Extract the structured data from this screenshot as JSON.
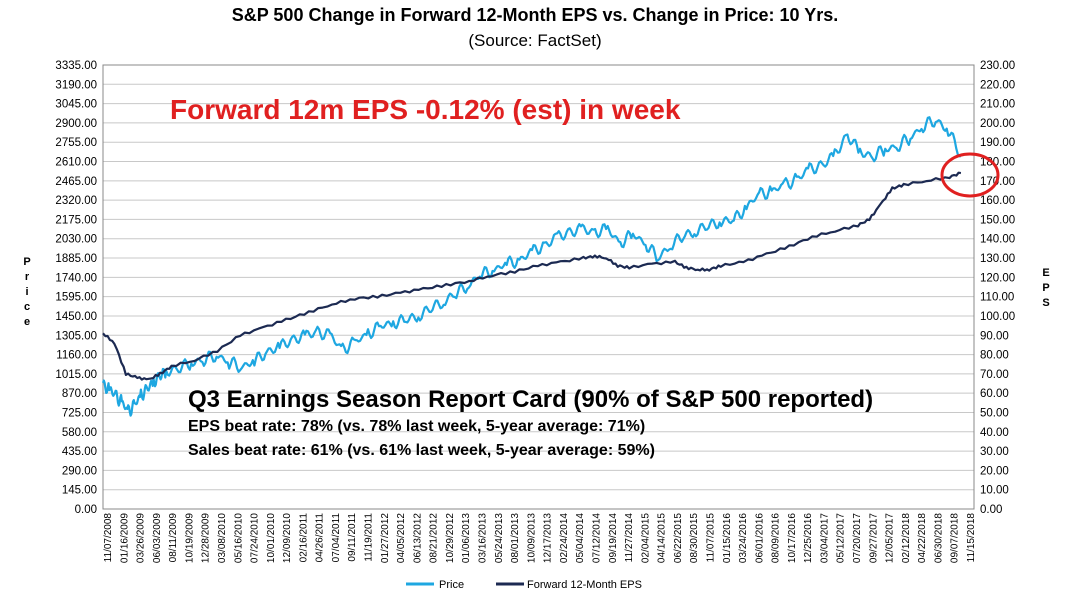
{
  "chart_data": {
    "type": "line",
    "title": "S&P 500 Change in Forward 12-Month EPS vs. Change in Price: 10 Yrs.",
    "subtitle": "(Source: FactSet)",
    "ylabel_left": "Price",
    "ylabel_right": "EPS",
    "ylim_left": [
      0,
      3335
    ],
    "ylim_right": [
      0,
      230
    ],
    "yticks_left": [
      "0.00",
      "145.00",
      "290.00",
      "435.00",
      "580.00",
      "725.00",
      "870.00",
      "1015.00",
      "1160.00",
      "1305.00",
      "1450.00",
      "1595.00",
      "1740.00",
      "1885.00",
      "2030.00",
      "2175.00",
      "2320.00",
      "2465.00",
      "2610.00",
      "2755.00",
      "2900.00",
      "3045.00",
      "3190.00",
      "3335.00"
    ],
    "yticks_right": [
      "0.00",
      "10.00",
      "20.00",
      "30.00",
      "40.00",
      "50.00",
      "60.00",
      "70.00",
      "80.00",
      "90.00",
      "100.00",
      "110.00",
      "120.00",
      "130.00",
      "140.00",
      "150.00",
      "160.00",
      "170.00",
      "180.00",
      "190.00",
      "200.00",
      "210.00",
      "220.00",
      "230.00"
    ],
    "x_tick_labels": [
      "11/07/2008",
      "01/16/2009",
      "03/26/2009",
      "06/03/2009",
      "08/11/2009",
      "10/19/2009",
      "12/28/2009",
      "03/08/2010",
      "05/16/2010",
      "07/24/2010",
      "10/01/2010",
      "12/09/2010",
      "02/16/2011",
      "04/26/2011",
      "07/04/2011",
      "09/11/2011",
      "11/19/2011",
      "01/27/2012",
      "04/05/2012",
      "06/13/2012",
      "08/21/2012",
      "10/29/2012",
      "01/06/2013",
      "03/16/2013",
      "05/24/2013",
      "08/01/2013",
      "10/09/2013",
      "12/17/2013",
      "02/24/2014",
      "05/04/2014",
      "07/12/2014",
      "09/19/2014",
      "11/27/2014",
      "02/04/2015",
      "04/14/2015",
      "06/22/2015",
      "08/30/2015",
      "11/07/2015",
      "01/15/2016",
      "03/24/2016",
      "06/01/2016",
      "08/09/2016",
      "10/17/2016",
      "12/25/2016",
      "03/04/2017",
      "05/12/2017",
      "07/20/2017",
      "09/27/2017",
      "12/05/2017",
      "02/12/2018",
      "04/22/2018",
      "06/30/2018",
      "09/07/2018",
      "11/15/2018"
    ],
    "series": [
      {
        "name": "Price",
        "axis": "left",
        "color": "#1ea7e1",
        "points": [
          [
            0,
            930
          ],
          [
            0.5,
            900
          ],
          [
            1,
            850
          ],
          [
            1.5,
            800
          ],
          [
            2,
            730
          ],
          [
            2.5,
            780
          ],
          [
            3,
            850
          ],
          [
            3.5,
            900
          ],
          [
            4,
            950
          ],
          [
            4.5,
            1000
          ],
          [
            5,
            1030
          ],
          [
            6,
            1060
          ],
          [
            7,
            1100
          ],
          [
            8,
            1120
          ],
          [
            9,
            1160
          ],
          [
            10,
            1100
          ],
          [
            11,
            1070
          ],
          [
            12,
            1110
          ],
          [
            13,
            1180
          ],
          [
            14,
            1220
          ],
          [
            15,
            1270
          ],
          [
            16,
            1300
          ],
          [
            17,
            1330
          ],
          [
            18,
            1300
          ],
          [
            19,
            1200
          ],
          [
            20,
            1250
          ],
          [
            21,
            1320
          ],
          [
            22,
            1370
          ],
          [
            23,
            1400
          ],
          [
            24,
            1420
          ],
          [
            25,
            1450
          ],
          [
            26,
            1510
          ],
          [
            27,
            1560
          ],
          [
            28,
            1620
          ],
          [
            29,
            1690
          ],
          [
            30,
            1760
          ],
          [
            31,
            1800
          ],
          [
            32,
            1840
          ],
          [
            33,
            1870
          ],
          [
            34,
            1930
          ],
          [
            35,
            1980
          ],
          [
            36,
            2040
          ],
          [
            37,
            2080
          ],
          [
            38,
            2100
          ],
          [
            39,
            2080
          ],
          [
            40,
            2100
          ],
          [
            41,
            2000
          ],
          [
            42,
            2060
          ],
          [
            43,
            2000
          ],
          [
            44,
            1880
          ],
          [
            45,
            1990
          ],
          [
            46,
            2050
          ],
          [
            47,
            2090
          ],
          [
            48,
            2130
          ],
          [
            49,
            2160
          ],
          [
            50,
            2170
          ],
          [
            51,
            2270
          ],
          [
            52,
            2360
          ],
          [
            53,
            2390
          ],
          [
            54,
            2430
          ],
          [
            55,
            2480
          ],
          [
            56,
            2550
          ],
          [
            57,
            2580
          ],
          [
            58,
            2660
          ],
          [
            59,
            2810
          ],
          [
            60,
            2680
          ],
          [
            61,
            2650
          ],
          [
            62,
            2700
          ],
          [
            63,
            2730
          ],
          [
            64,
            2790
          ],
          [
            65,
            2880
          ],
          [
            66,
            2920
          ],
          [
            67,
            2850
          ],
          [
            68,
            2650
          ]
        ]
      },
      {
        "name": "Forward 12-Month EPS",
        "axis": "right",
        "color": "#1c2a52",
        "points": [
          [
            0,
            91
          ],
          [
            1,
            86
          ],
          [
            2,
            70
          ],
          [
            3,
            68
          ],
          [
            4,
            67
          ],
          [
            5,
            70
          ],
          [
            6,
            74
          ],
          [
            8,
            77
          ],
          [
            10,
            82
          ],
          [
            12,
            90
          ],
          [
            14,
            94
          ],
          [
            16,
            98
          ],
          [
            18,
            102
          ],
          [
            20,
            106
          ],
          [
            22,
            109
          ],
          [
            24,
            110
          ],
          [
            26,
            112
          ],
          [
            28,
            114
          ],
          [
            30,
            116
          ],
          [
            32,
            118
          ],
          [
            34,
            121
          ],
          [
            36,
            123
          ],
          [
            38,
            126
          ],
          [
            40,
            128
          ],
          [
            42,
            130
          ],
          [
            43,
            131
          ],
          [
            44,
            130
          ],
          [
            45,
            126
          ],
          [
            46,
            125
          ],
          [
            48,
            127
          ],
          [
            50,
            128
          ],
          [
            51,
            125
          ],
          [
            52,
            124
          ],
          [
            53,
            124
          ],
          [
            54,
            126
          ],
          [
            56,
            128
          ],
          [
            58,
            132
          ],
          [
            60,
            136
          ],
          [
            62,
            141
          ],
          [
            64,
            144
          ],
          [
            66,
            147
          ],
          [
            67,
            150
          ],
          [
            68,
            158
          ],
          [
            69,
            166
          ],
          [
            70,
            168
          ],
          [
            72,
            170
          ],
          [
            74,
            172
          ],
          [
            75,
            174
          ]
        ]
      }
    ],
    "legend": [
      "Price",
      "Forward 12-Month EPS"
    ],
    "legend_position": "bottom",
    "grid": true
  },
  "annotations": {
    "headline": "Forward 12m EPS -0.12% (est) in week",
    "report_title": "Q3 Earnings Season Report Card (90% of S&P 500 reported)",
    "eps_line": "EPS beat rate: 78% (vs. 78% last week, 5-year average: 71%)",
    "sales_line": "Sales beat rate: 61% (vs. 61% last week, 5-year average: 59%)",
    "highlight_color": "#e02020"
  }
}
